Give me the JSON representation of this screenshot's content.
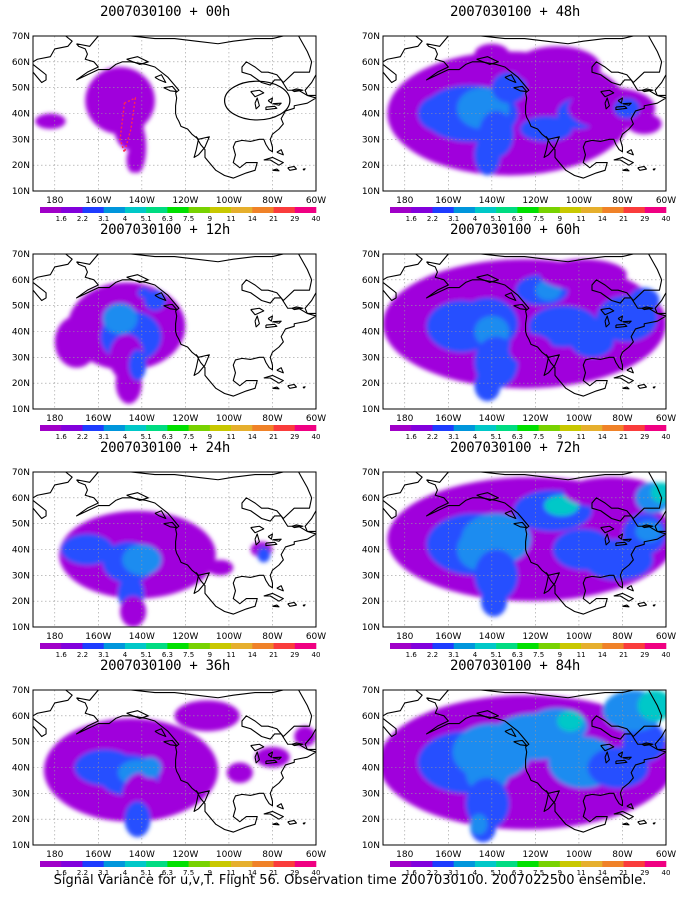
{
  "panels": [
    {
      "title": "2007030100 + 00h",
      "stage": 0
    },
    {
      "title": "2007030100 + 48h",
      "stage": 4
    },
    {
      "title": "2007030100 + 12h",
      "stage": 1
    },
    {
      "title": "2007030100 + 60h",
      "stage": 5
    },
    {
      "title": "2007030100 + 24h",
      "stage": 2
    },
    {
      "title": "2007030100 + 72h",
      "stage": 6
    },
    {
      "title": "2007030100 + 36h",
      "stage": 3
    },
    {
      "title": "2007030100 + 84h",
      "stage": 7
    }
  ],
  "axes": {
    "lat_labels": [
      "10N",
      "20N",
      "30N",
      "40N",
      "50N",
      "60N",
      "70N"
    ],
    "lon_labels": [
      "180",
      "160W",
      "140W",
      "120W",
      "100W",
      "80W",
      "60W"
    ]
  },
  "colorbar": {
    "labels": [
      "1.6",
      "2.2",
      "3.1",
      "4",
      "5.1",
      "6.3",
      "7.5",
      "9",
      "11",
      "14",
      "21",
      "29",
      "40"
    ],
    "colors": [
      "#a000c8",
      "#8200dc",
      "#1e3cff",
      "#0096dc",
      "#00c8c8",
      "#00dc82",
      "#00e000",
      "#78d200",
      "#c8c800",
      "#e6af2d",
      "#f08228",
      "#fa3c3c",
      "#f00082"
    ]
  },
  "footer": "Signal Variance for u,v,T. Flight 56. Observation time 2007030100. 2007022500 ensemble."
}
